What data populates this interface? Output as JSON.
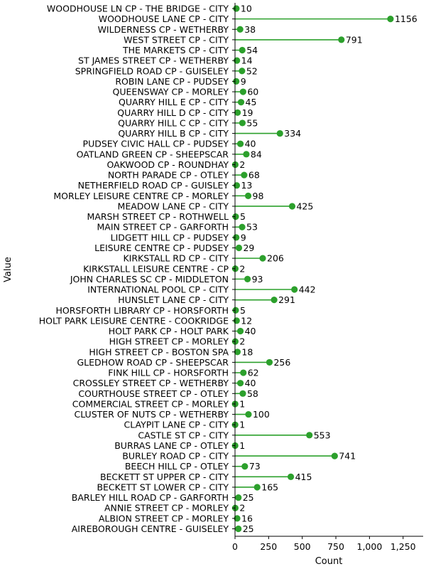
{
  "chart_data": {
    "type": "lollipop",
    "orientation": "horizontal",
    "title": "",
    "xlabel": "Count",
    "ylabel": "Value",
    "xlim": [
      0,
      1400
    ],
    "xticks": [
      0,
      250,
      500,
      750,
      1000,
      1250
    ],
    "xtick_labels": [
      "0",
      "250",
      "500",
      "750",
      "1,000",
      "1,250"
    ],
    "grid": false,
    "color": "#2ca02c",
    "categories": [
      "WOODHOUSE LN CP - THE BRIDGE - CITY",
      "WOODHOUSE LANE  CP - CITY",
      "WILDERNESS CP - WETHERBY",
      "WEST STREET CP - CITY",
      "THE MARKETS CP - CITY",
      "ST JAMES STREET CP - WETHERBY",
      "SPRINGFIELD ROAD CP - GUISELEY",
      "ROBIN LANE CP - PUDSEY",
      "QUEENSWAY CP - MORLEY",
      "QUARRY HILL E CP - CITY",
      "QUARRY HILL D CP - CITY",
      "QUARRY HILL C CP - CITY",
      "QUARRY HILL B CP - CITY",
      "PUDSEY CIVIC HALL CP - PUDSEY",
      "OATLAND GREEN CP - SHEEPSCAR",
      "OAKWOOD CP - ROUNDHAY",
      "NORTH PARADE CP - OTLEY",
      "NETHERFIELD ROAD CP - GUISLEY",
      "MORLEY LEISURE CENTRE CP - MORLEY",
      "MEADOW LANE CP - CITY",
      "MARSH STREET CP - ROTHWELL",
      "MAIN STREET CP - GARFORTH",
      "LIDGETT HILL CP - PUDSEY",
      "LEISURE CENTRE CP - PUDSEY",
      "KIRKSTALL RD CP - CITY",
      "KIRKSTALL LEISURE CENTRE - CP",
      "JOHN CHARLES SC CP - MIDDLETON",
      "INTERNATIONAL POOL CP - CITY",
      "HUNSLET LANE CP - CITY",
      "HORSFORTH LIBRARY CP - HORSFORTH",
      "HOLT PARK LEISURE CENTRE - COOKRIDGE",
      "HOLT PARK CP - HOLT PARK",
      "HIGH STREET CP - MORLEY",
      "HIGH STREET CP - BOSTON SPA",
      "GLEDHOW ROAD CP - SHEEPSCAR",
      "FINK HILL CP - HORSFORTH",
      "CROSSLEY STREET CP - WETHERBY",
      "COURTHOUSE STREET CP - OTLEY",
      "COMMERCIAL STREET CP - MORLEY",
      "CLUSTER OF NUTS CP - WETHERBY",
      "CLAYPIT LANE CP - CITY",
      "CASTLE ST CP - CITY",
      "BURRAS LANE CP - OTLEY",
      "BURLEY ROAD CP - CITY",
      "BEECH HILL CP - OTLEY",
      "BECKETT ST UPPER CP - CITY",
      "BECKETT ST LOWER CP - CITY",
      "BARLEY HILL ROAD CP - GARFORTH",
      "ANNIE STREET CP - MORLEY",
      "ALBION STREET CP - MORLEY",
      "AIREBOROUGH CENTRE - GUISELEY"
    ],
    "values": [
      10,
      1156,
      38,
      791,
      54,
      14,
      52,
      9,
      60,
      45,
      19,
      55,
      334,
      40,
      84,
      2,
      68,
      13,
      98,
      425,
      5,
      53,
      9,
      29,
      206,
      2,
      93,
      442,
      291,
      5,
      12,
      40,
      2,
      18,
      256,
      62,
      40,
      58,
      1,
      100,
      1,
      553,
      1,
      741,
      73,
      415,
      165,
      25,
      2,
      16,
      25
    ]
  }
}
